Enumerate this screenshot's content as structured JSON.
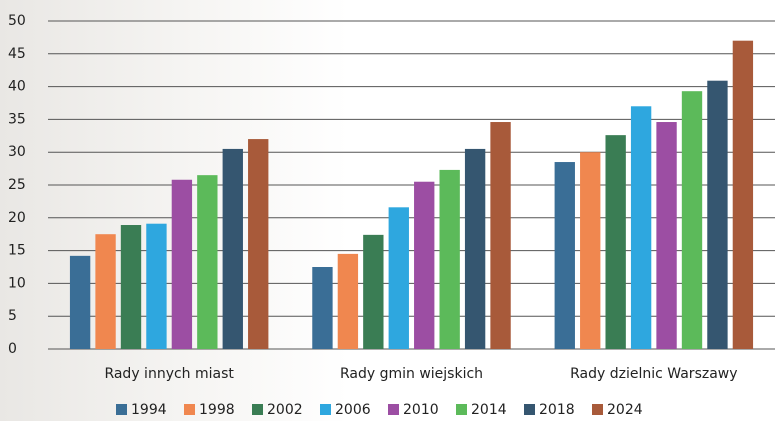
{
  "chart_data": {
    "type": "bar",
    "categories": [
      "Rady innych miast",
      "Rady gmin wiejskich",
      "Rady dzielnic Warszawy"
    ],
    "series": [
      {
        "name": "1994",
        "color": "#3a6e96",
        "values": [
          14.2,
          12.5,
          28.5
        ]
      },
      {
        "name": "1998",
        "color": "#f0874f",
        "values": [
          17.5,
          14.5,
          30
        ]
      },
      {
        "name": "2002",
        "color": "#3a7d54",
        "values": [
          18.9,
          17.4,
          32.6
        ]
      },
      {
        "name": "2006",
        "color": "#2ea7df",
        "values": [
          19.1,
          21.6,
          37
        ]
      },
      {
        "name": "2010",
        "color": "#9c4ea3",
        "values": [
          25.8,
          25.5,
          34.6
        ]
      },
      {
        "name": "2014",
        "color": "#5cba5a",
        "values": [
          26.5,
          27.3,
          39.3
        ]
      },
      {
        "name": "2018",
        "color": "#355670",
        "values": [
          30.5,
          30.5,
          40.9
        ]
      },
      {
        "name": "2024",
        "color": "#a85a3a",
        "values": [
          32,
          34.6,
          47
        ]
      }
    ],
    "ylim": [
      0,
      50
    ],
    "yticks": [
      0,
      5,
      10,
      15,
      20,
      25,
      30,
      35,
      40,
      45,
      50
    ],
    "grid": true,
    "legend": "bottom"
  }
}
